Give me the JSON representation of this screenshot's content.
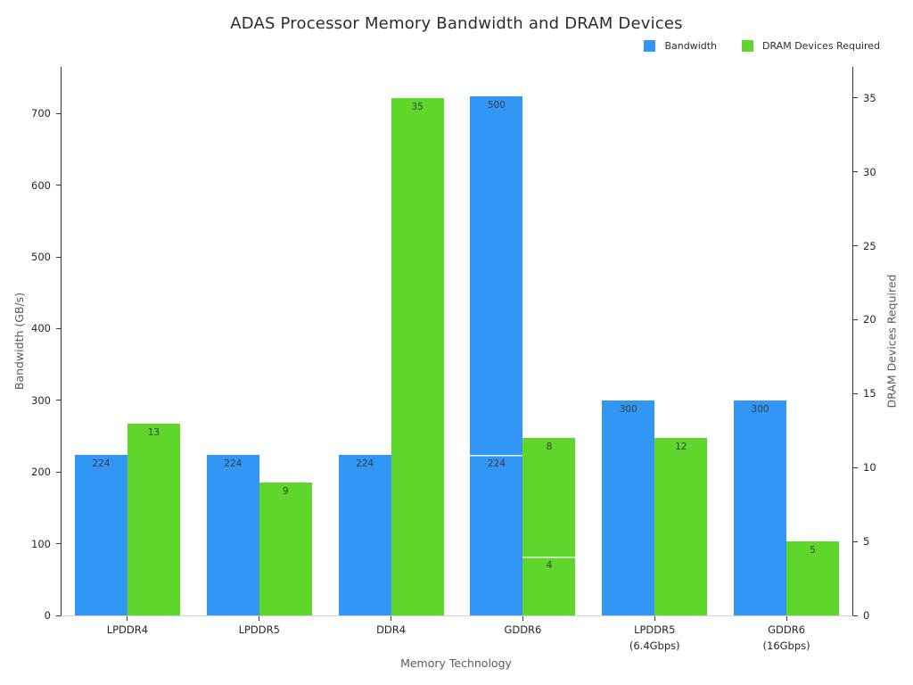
{
  "chart_data": {
    "type": "bar",
    "title": "ADAS Processor Memory Bandwidth and DRAM Devices",
    "xlabel": "Memory Technology",
    "grid": false,
    "background": "#ffffff",
    "categories": [
      "LPDDR4",
      "LPDDR5",
      "DDR4",
      "GDDR6",
      "LPDDR5\n(6.4Gbps)",
      "GDDR6\n(16Gbps)"
    ],
    "series": [
      {
        "name": "Bandwidth",
        "axis": "left",
        "color": "#3296f4",
        "stacked_values": [
          [
            224
          ],
          [
            224
          ],
          [
            224
          ],
          [
            224,
            500
          ],
          [
            300
          ],
          [
            300
          ]
        ]
      },
      {
        "name": "DRAM Devices Required",
        "axis": "right",
        "color": "#5ed62b",
        "stacked_values": [
          [
            13
          ],
          [
            9
          ],
          [
            35
          ],
          [
            4,
            8
          ],
          [
            12
          ],
          [
            5
          ]
        ]
      }
    ],
    "left_axis": {
      "label": "Bandwidth (GB/s)",
      "ticks": [
        0,
        100,
        200,
        300,
        400,
        500,
        600,
        700
      ],
      "range": [
        0,
        765
      ]
    },
    "right_axis": {
      "label": "DRAM Devices Required",
      "ticks": [
        0,
        5,
        10,
        15,
        20,
        25,
        30,
        35
      ],
      "range": [
        0,
        37.1
      ]
    },
    "legend": {
      "position": "top-right",
      "entries": [
        {
          "label": "Bandwidth",
          "color": "#3296f4"
        },
        {
          "label": "DRAM Devices Required",
          "color": "#5ed62b"
        }
      ]
    },
    "bar_labels_visible": true
  },
  "styles": {
    "spine_dark": "#333333",
    "spine_light": "#d4d4d4",
    "tick_label_color": "#262626",
    "axis_title_color": "#5a5a5a",
    "title_color": "#2d2d2d",
    "bar_label_color": "#3c3c3c",
    "segment_divider_color": "rgba(255,255,255,0.85)"
  }
}
